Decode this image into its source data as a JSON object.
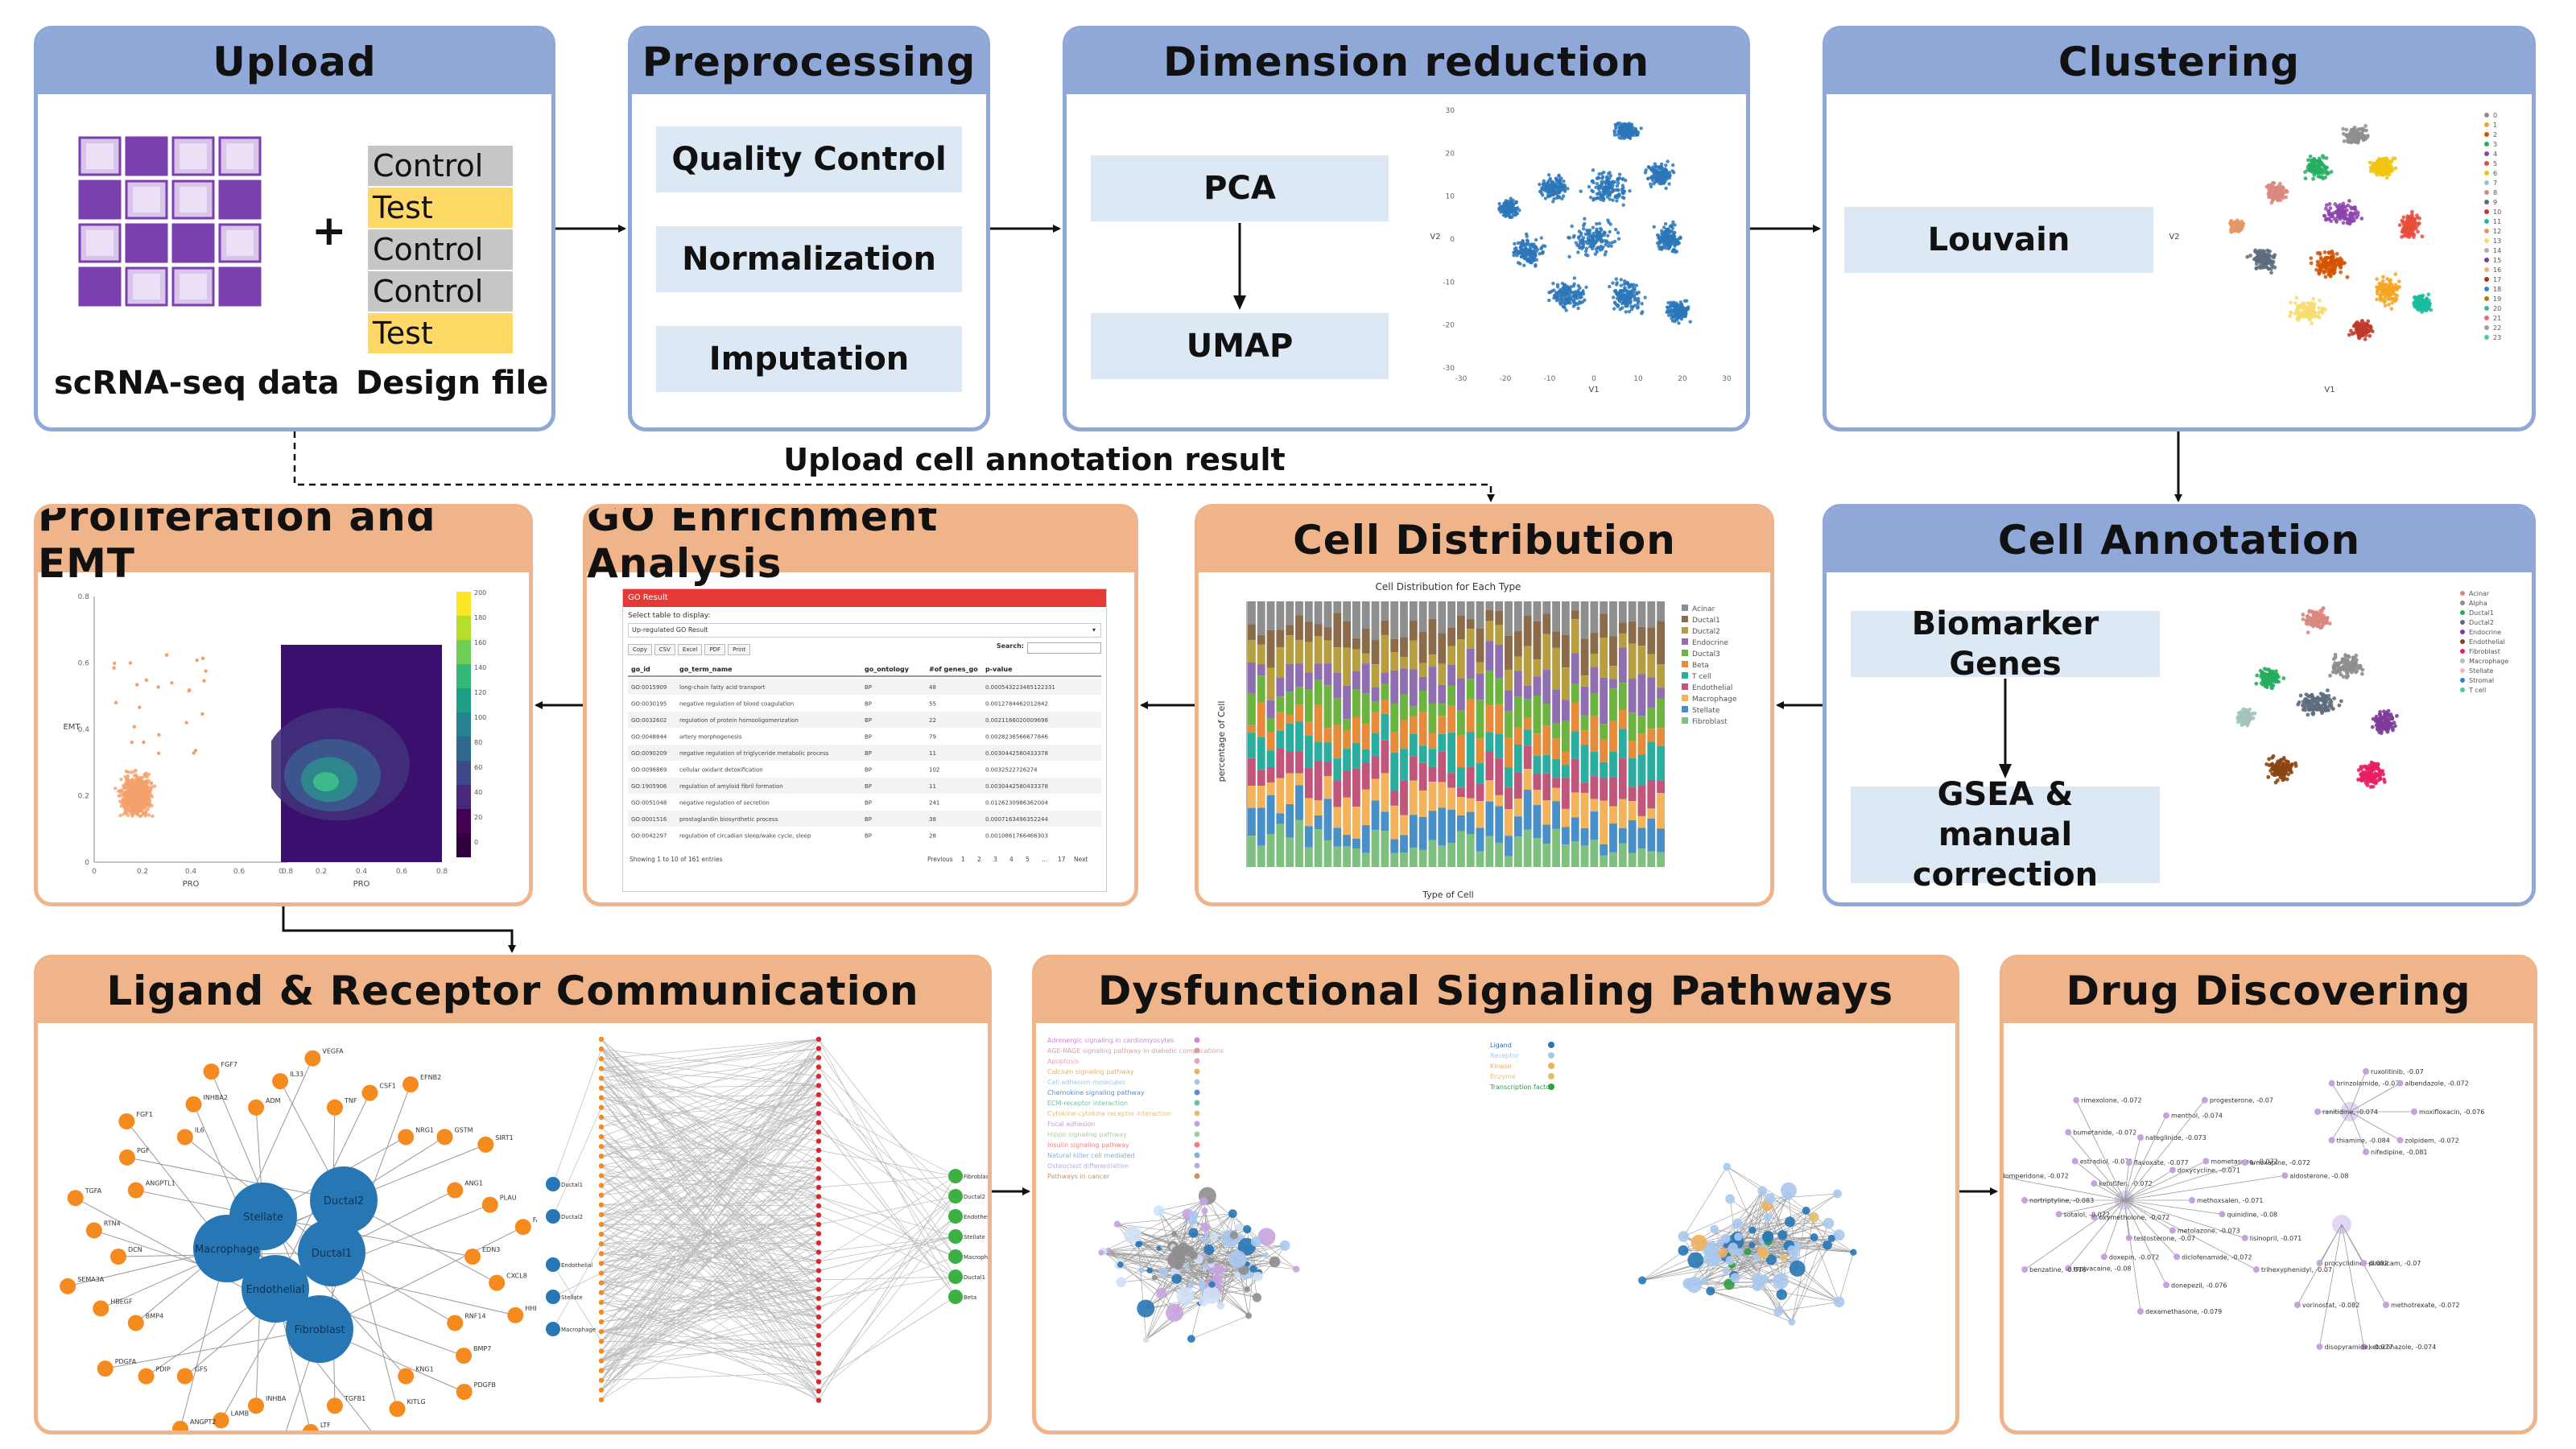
{
  "upload": {
    "title": "Upload",
    "plus": "+",
    "scrna_label": "scRNA-seq data",
    "design_label": "Design file",
    "design_rows": [
      {
        "text": "Control",
        "color": "#c6c6c6"
      },
      {
        "text": "Test",
        "color": "#ffd966"
      },
      {
        "text": "Control",
        "color": "#c6c6c6"
      },
      {
        "text": "Control",
        "color": "#c6c6c6"
      },
      {
        "text": "Test",
        "color": "#ffd966"
      }
    ]
  },
  "preprocessing": {
    "title": "Preprocessing",
    "steps": [
      "Quality Control",
      "Normalization",
      "Imputation"
    ]
  },
  "dimred": {
    "title": "Dimension reduction",
    "method1": "PCA",
    "method2": "UMAP",
    "yaxis": "V2",
    "xaxis": "V1",
    "xticks": [
      "-30",
      "-20",
      "-10",
      "0",
      "10",
      "20",
      "30"
    ],
    "yticks": [
      "30",
      "20",
      "10",
      "0",
      "-10",
      "-20",
      "-30"
    ]
  },
  "clustering": {
    "title": "Clustering",
    "method": "Louvain",
    "yaxis": "V2",
    "xaxis": "V1",
    "legend": [
      "0",
      "1",
      "2",
      "3",
      "4",
      "5",
      "6",
      "7",
      "8",
      "9",
      "10",
      "11",
      "12",
      "13",
      "14",
      "15",
      "16",
      "17",
      "18",
      "19",
      "20",
      "21",
      "22",
      "23"
    ]
  },
  "connector_label": "Upload cell annotation result",
  "annotation": {
    "title": "Cell Annotation",
    "step1": "Biomarker Genes",
    "step2": "GSEA & manual correction",
    "legend": [
      "Acinar",
      "Alpha",
      "Ductal1",
      "Ductal2",
      "Endocrine",
      "Endothelial",
      "Fibroblast",
      "Macrophage",
      "Stellate",
      "Stromal",
      "T cell"
    ]
  },
  "distribution": {
    "title": "Cell Distribution",
    "chart_title": "Cell Distribution for Each Type",
    "ylabel": "percentage of Cell",
    "xlabel": "Type of Cell",
    "legend": [
      "Acinar",
      "Ductal1",
      "Ductal2",
      "Endocrine",
      "Ductal3",
      "Beta",
      "T cell",
      "Endothelial",
      "Macrophage",
      "Stellate",
      "Fibroblast"
    ]
  },
  "go": {
    "title": "GO Enrichment Analysis",
    "header": "GO Result",
    "select_label": "Select table to display:",
    "select_value": "Up-regulated GO Result",
    "buttons": [
      "Copy",
      "CSV",
      "Excel",
      "PDF",
      "Print"
    ],
    "search_label": "Search:",
    "columns": [
      "go_id",
      "go_term_name",
      "go_ontology",
      "#of genes_go",
      "p-value"
    ],
    "rows": [
      [
        "GO:0015909",
        "long-chain fatty acid transport",
        "BP",
        "48",
        "0.000543223465122331"
      ],
      [
        "GO:0030195",
        "negative regulation of blood coagulation",
        "BP",
        "55",
        "0.0012784462012842"
      ],
      [
        "GO:0032602",
        "regulation of protein homooligomerization",
        "BP",
        "22",
        "0.0021166020009698"
      ],
      [
        "GO:0048844",
        "artery morphogenesis",
        "BP",
        "79",
        "0.0028236566677846"
      ],
      [
        "GO:0090209",
        "negative regulation of triglyceride metabolic process",
        "BP",
        "11",
        "0.0030442580433378"
      ],
      [
        "GO:0098869",
        "cellular oxidant detoxification",
        "BP",
        "102",
        "0.0032522726274"
      ],
      [
        "GO:1905906",
        "regulation of amyloid fibril formation",
        "BP",
        "11",
        "0.0030442580433378"
      ],
      [
        "GO:0051048",
        "negative regulation of secretion",
        "BP",
        "241",
        "0.0126230986362004"
      ],
      [
        "GO:0001516",
        "prostaglandin biosynthetic process",
        "BP",
        "38",
        "0.0007163496352244"
      ],
      [
        "GO:0042297",
        "regulation of circadian sleep/wake cycle, sleep",
        "BP",
        "28",
        "0.0010861766466303"
      ]
    ],
    "footer": "Showing 1 to 10 of 161 entries",
    "pages": [
      "Previous",
      "1",
      "2",
      "3",
      "4",
      "5",
      "...",
      "17",
      "Next"
    ]
  },
  "emt": {
    "title": "Proliferation and EMT",
    "xlabel": "PRO",
    "ylabel": "EMT",
    "xticks": [
      "0",
      "0.2",
      "0.4",
      "0.6",
      "0.8"
    ],
    "yticks": [
      "0.8",
      "0.6",
      "0.4",
      "0.2",
      "0"
    ],
    "colorbar": [
      "200",
      "180",
      "160",
      "140",
      "120",
      "100",
      "80",
      "60",
      "40",
      "20",
      "0"
    ]
  },
  "ligand": {
    "title": "Ligand & Receptor Communication",
    "hubs": [
      "Stellate",
      "Ductal2",
      "Macrophage",
      "Ductal1",
      "Endothelial",
      "Fibroblast"
    ],
    "ligands": [
      "EDN3",
      "CXCL8",
      "HHIP",
      "RNF14",
      "BMP7",
      "PDGFB",
      "KNG1",
      "KITLG",
      "EFNA5",
      "TGFB1",
      "LTF",
      "WNT5",
      "INHBA",
      "LAMB",
      "ANGPT2",
      "GFS",
      "PDIP",
      "PDGFA",
      "BMP4",
      "HBEGF",
      "SEMA3A",
      "DCN",
      "RTN4",
      "TGFA",
      "ANGPTL1",
      "PGF",
      "FGF1",
      "IL6",
      "INHBA2",
      "FGF7",
      "ADM",
      "IL33",
      "VEGFA",
      "TNF",
      "CSF1",
      "EFNB2",
      "NRG1",
      "GSTM",
      "SIRT1",
      "ANG1",
      "PLAU",
      "FARP"
    ],
    "left_nodes": [
      "Ductal1",
      "Ductal2",
      "Endothelial",
      "Stellate",
      "Macrophage"
    ],
    "right_nodes": [
      "Fibroblast",
      "Ductal2",
      "Endothelial",
      "Stellate",
      "Macrophage",
      "Ductal1",
      "Beta"
    ]
  },
  "pathways": {
    "title": "Dysfunctional Signaling Pathways",
    "legend_left": [
      "Adrenergic signaling in cardiomyocytes",
      "AGE-RAGE signaling pathway in diabetic complications",
      "Apoptosis",
      "Calcium signaling pathway",
      "Cell adhesion molecules",
      "Chemokine signaling pathway",
      "ECM-receptor interaction",
      "Cytokine-cytokine receptor interaction",
      "Focal adhesion",
      "Hippo signaling pathway",
      "Insulin signaling pathway",
      "Natural killer cell mediated",
      "Osteoclast differentiation",
      "Pathways in cancer"
    ],
    "legend_right": [
      "Ligand",
      "Receptor",
      "Kinase",
      "Enzyme",
      "Transcription factor"
    ]
  },
  "drug": {
    "title": "Drug Discovering",
    "labels": [
      "methoxsalen, -0.071",
      "quinidine, -0.08",
      "lisinopril, -0.071",
      "trihexyphenidyl, -0.07",
      "metolazone, -0.073",
      "diclofenamide, -0.072",
      "donepezil, -0.076",
      "dexamethasone, -0.079",
      "testosterone, -0.07",
      "doxepin, -0.072",
      "ropivacaine, -0.08",
      "benzatine, -0.076",
      "oxymetholone, -0.072",
      "sotalol, -0.072",
      "nortriptyline, -0.083",
      "domperidone, -0.072",
      "ketotifen, -0.072",
      "estradiol, -0.071",
      "bumetanide, -0.072",
      "rimexolone, -0.072",
      "flavoxate, -0.077",
      "nateglinide, -0.073",
      "menthol, -0.074",
      "progesterone, -0.07",
      "doxycycline, -0.071",
      "mometasone, -0.072",
      "amoxapine, -0.072",
      "aldosterone, -0.08",
      "moxifloxacin, -0.076",
      "zolpidem, -0.072",
      "nifedipine, -0.081",
      "thiamine, -0.084",
      "ranitidine, -0.074",
      "brinzolamide, -0.075",
      "ruxolitinib, -0.07",
      "albendazole, -0.072",
      "methotrexate, -0.072",
      "ketoconazole, -0.074",
      "disopyramide, -0.077",
      "vorinostat, -0.082",
      "procyclidine, -0.082",
      "piroxicam, -0.07"
    ]
  }
}
